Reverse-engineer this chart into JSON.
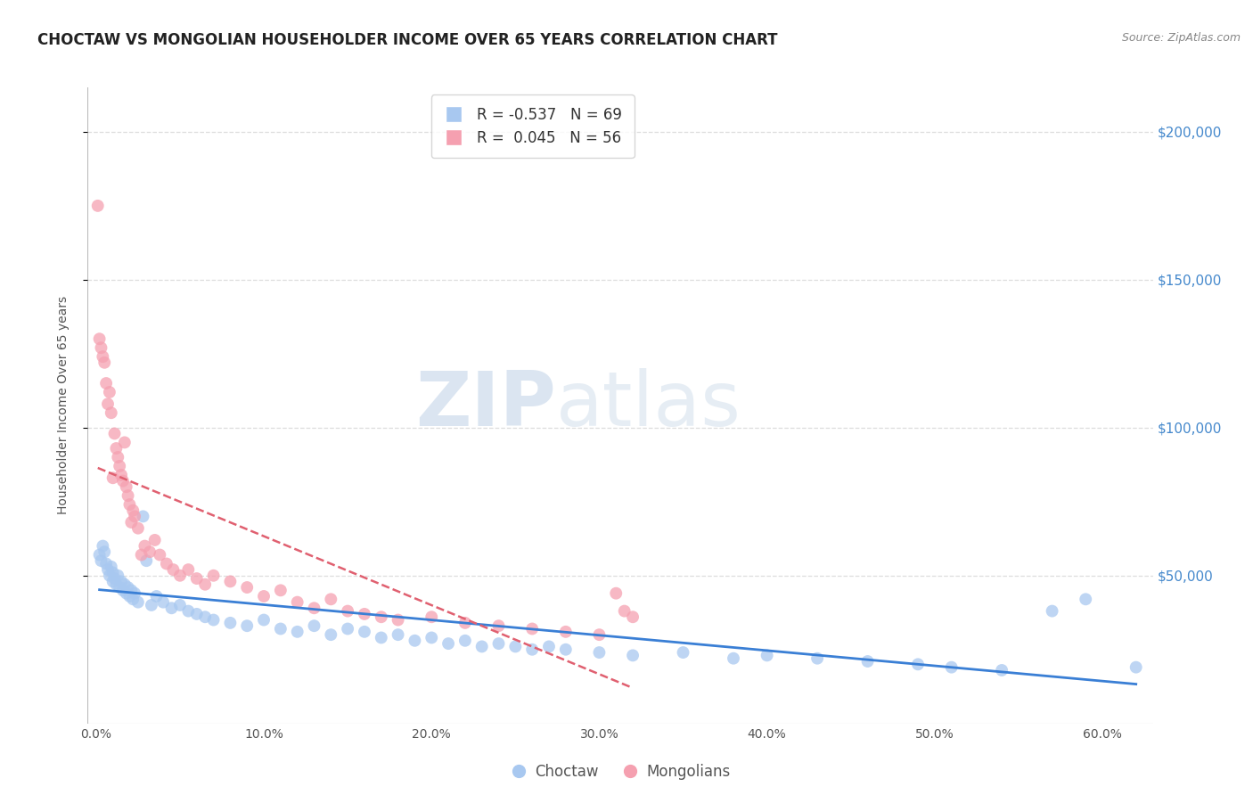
{
  "title": "CHOCTAW VS MONGOLIAN HOUSEHOLDER INCOME OVER 65 YEARS CORRELATION CHART",
  "source": "Source: ZipAtlas.com",
  "ylabel": "Householder Income Over 65 years",
  "xlabel_ticks": [
    "0.0%",
    "10.0%",
    "20.0%",
    "30.0%",
    "40.0%",
    "50.0%",
    "60.0%"
  ],
  "xlabel_vals": [
    0.0,
    0.1,
    0.2,
    0.3,
    0.4,
    0.5,
    0.6
  ],
  "ytick_labels": [
    "$50,000",
    "$100,000",
    "$150,000",
    "$200,000"
  ],
  "ytick_vals": [
    50000,
    100000,
    150000,
    200000
  ],
  "ylim": [
    0,
    215000
  ],
  "xlim": [
    -0.005,
    0.63
  ],
  "choctaw_color": "#a8c8f0",
  "mongolian_color": "#f5a0b0",
  "choctaw_line_color": "#3a7fd5",
  "mongolian_line_color": "#e06070",
  "choctaw_R": -0.537,
  "choctaw_N": 69,
  "mongolian_R": 0.045,
  "mongolian_N": 56,
  "legend_choctaw_label": "Choctaw",
  "legend_mongolian_label": "Mongolians",
  "watermark_zip": "ZIP",
  "watermark_atlas": "atlas",
  "background_color": "#ffffff",
  "grid_color": "#dddddd",
  "right_tick_color": "#4488cc",
  "title_fontsize": 12,
  "axis_label_fontsize": 10,
  "choctaw_x": [
    0.002,
    0.003,
    0.004,
    0.005,
    0.006,
    0.007,
    0.008,
    0.009,
    0.01,
    0.01,
    0.011,
    0.012,
    0.013,
    0.014,
    0.015,
    0.016,
    0.017,
    0.018,
    0.019,
    0.02,
    0.021,
    0.022,
    0.023,
    0.025,
    0.028,
    0.03,
    0.033,
    0.036,
    0.04,
    0.045,
    0.05,
    0.055,
    0.06,
    0.065,
    0.07,
    0.08,
    0.09,
    0.1,
    0.11,
    0.12,
    0.13,
    0.14,
    0.15,
    0.16,
    0.17,
    0.18,
    0.19,
    0.2,
    0.21,
    0.22,
    0.23,
    0.24,
    0.25,
    0.26,
    0.27,
    0.28,
    0.3,
    0.32,
    0.35,
    0.38,
    0.4,
    0.43,
    0.46,
    0.49,
    0.51,
    0.54,
    0.57,
    0.59,
    0.62
  ],
  "choctaw_y": [
    57000,
    55000,
    60000,
    58000,
    54000,
    52000,
    50000,
    53000,
    48000,
    51000,
    49000,
    47000,
    50000,
    46000,
    48000,
    45000,
    47000,
    44000,
    46000,
    43000,
    45000,
    42000,
    44000,
    41000,
    70000,
    55000,
    40000,
    43000,
    41000,
    39000,
    40000,
    38000,
    37000,
    36000,
    35000,
    34000,
    33000,
    35000,
    32000,
    31000,
    33000,
    30000,
    32000,
    31000,
    29000,
    30000,
    28000,
    29000,
    27000,
    28000,
    26000,
    27000,
    26000,
    25000,
    26000,
    25000,
    24000,
    23000,
    24000,
    22000,
    23000,
    22000,
    21000,
    20000,
    19000,
    18000,
    38000,
    42000,
    19000
  ],
  "mongolian_x": [
    0.001,
    0.002,
    0.003,
    0.004,
    0.005,
    0.006,
    0.007,
    0.008,
    0.009,
    0.01,
    0.011,
    0.012,
    0.013,
    0.014,
    0.015,
    0.016,
    0.017,
    0.018,
    0.019,
    0.02,
    0.021,
    0.022,
    0.023,
    0.025,
    0.027,
    0.029,
    0.032,
    0.035,
    0.038,
    0.042,
    0.046,
    0.05,
    0.055,
    0.06,
    0.065,
    0.07,
    0.08,
    0.09,
    0.1,
    0.11,
    0.12,
    0.13,
    0.14,
    0.15,
    0.16,
    0.17,
    0.18,
    0.2,
    0.22,
    0.24,
    0.26,
    0.28,
    0.3,
    0.31,
    0.315,
    0.32
  ],
  "mongolian_y": [
    175000,
    130000,
    127000,
    124000,
    122000,
    115000,
    108000,
    112000,
    105000,
    83000,
    98000,
    93000,
    90000,
    87000,
    84000,
    82000,
    95000,
    80000,
    77000,
    74000,
    68000,
    72000,
    70000,
    66000,
    57000,
    60000,
    58000,
    62000,
    57000,
    54000,
    52000,
    50000,
    52000,
    49000,
    47000,
    50000,
    48000,
    46000,
    43000,
    45000,
    41000,
    39000,
    42000,
    38000,
    37000,
    36000,
    35000,
    36000,
    34000,
    33000,
    32000,
    31000,
    30000,
    44000,
    38000,
    36000
  ]
}
